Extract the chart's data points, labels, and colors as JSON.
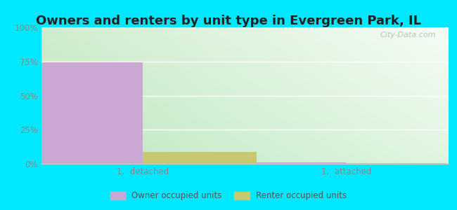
{
  "title": "Owners and renters by unit type in Evergreen Park, IL",
  "categories": [
    "1,  detached",
    "1,  attached"
  ],
  "owner_values": [
    74.5,
    0.8
  ],
  "renter_values": [
    8.5,
    0.5
  ],
  "owner_color": "#c9a8d4",
  "renter_color": "#c8c870",
  "bar_width": 0.28,
  "ylim": [
    0,
    100
  ],
  "yticks": [
    0,
    25,
    50,
    75,
    100
  ],
  "ytick_labels": [
    "0%",
    "25%",
    "50%",
    "75%",
    "100%"
  ],
  "background_outer": "#00e8ff",
  "background_inner_topleft": "#d8f0da",
  "background_inner_topright": "#f0faf0",
  "background_inner_bottom": "#c8e8cc",
  "watermark": "City-Data.com",
  "legend_owner": "Owner occupied units",
  "legend_renter": "Renter occupied units",
  "title_fontsize": 13,
  "tick_color": "#888888",
  "grid_color": "#ffffff",
  "x_positions": [
    0.25,
    0.75
  ],
  "xlim": [
    0.0,
    1.0
  ]
}
